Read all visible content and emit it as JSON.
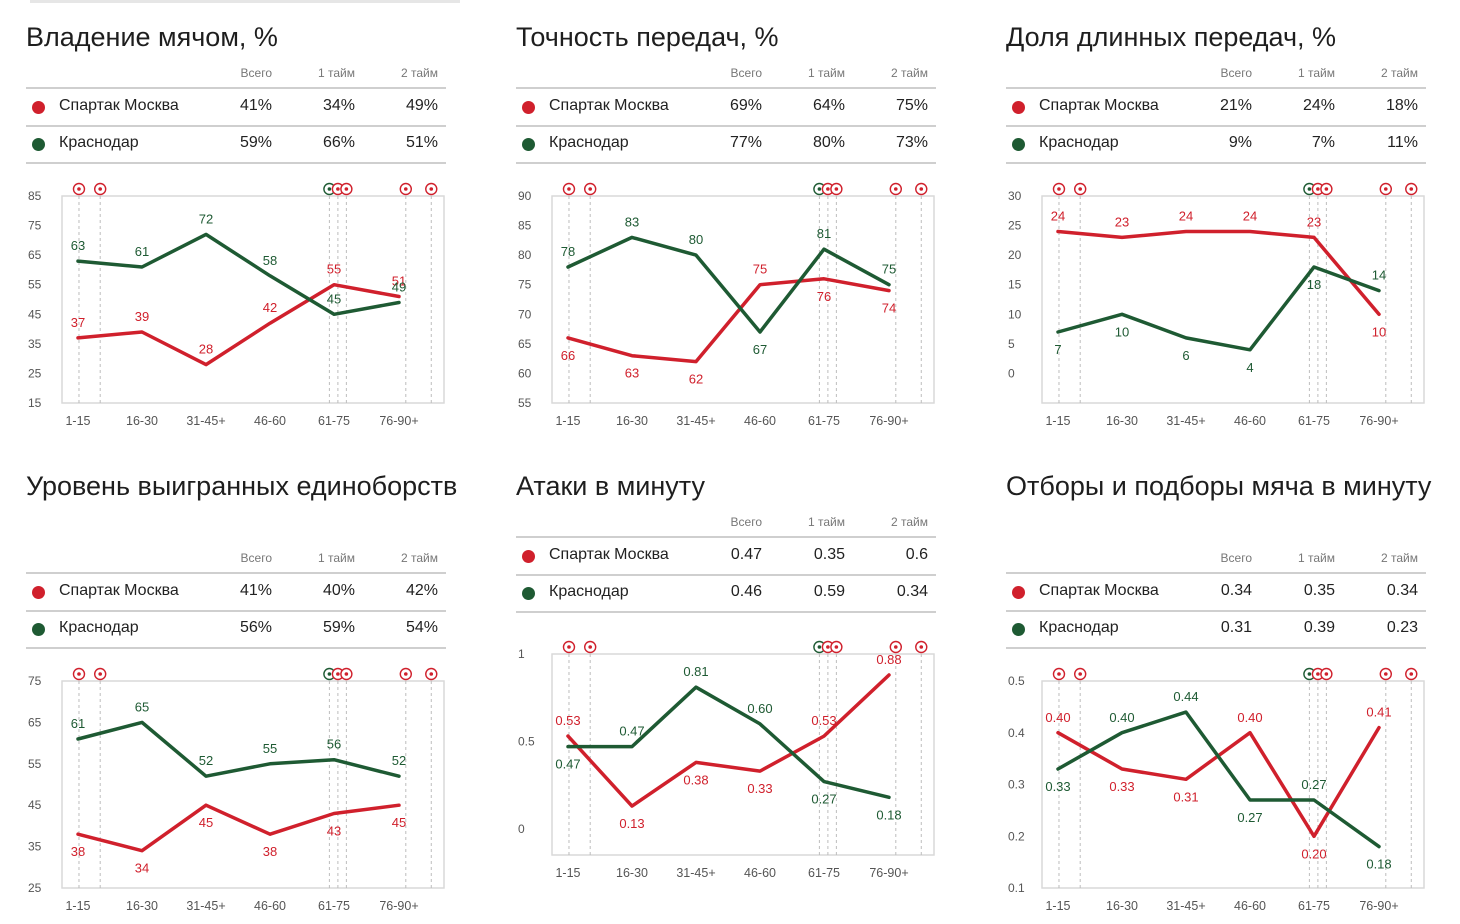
{
  "colors": {
    "spartak": "#d0202c",
    "krasnodar": "#1e5a33"
  },
  "header": {
    "total": "Всего",
    "half1": "1 тайм",
    "half2": "2 тайм"
  },
  "panels": [
    {
      "title": "Владение мячом, %",
      "rows": [
        {
          "team": "Спартак Москва",
          "color": "#d0202c",
          "total": "41%",
          "h1": "34%",
          "h2": "49%"
        },
        {
          "team": "Краснодар",
          "color": "#1e5a33",
          "total": "59%",
          "h1": "66%",
          "h2": "51%"
        }
      ]
    },
    {
      "title": "Точность передач, %",
      "rows": [
        {
          "team": "Спартак Москва",
          "color": "#d0202c",
          "total": "69%",
          "h1": "64%",
          "h2": "75%"
        },
        {
          "team": "Краснодар",
          "color": "#1e5a33",
          "total": "77%",
          "h1": "80%",
          "h2": "73%"
        }
      ]
    },
    {
      "title": "Доля длинных передач, %",
      "rows": [
        {
          "team": "Спартак Москва",
          "color": "#d0202c",
          "total": "21%",
          "h1": "24%",
          "h2": "18%"
        },
        {
          "team": "Краснодар",
          "color": "#1e5a33",
          "total": "9%",
          "h1": "7%",
          "h2": "11%"
        }
      ]
    },
    {
      "title": "Уровень выигранных единоборств",
      "rows": [
        {
          "team": "Спартак Москва",
          "color": "#d0202c",
          "total": "41%",
          "h1": "40%",
          "h2": "42%"
        },
        {
          "team": "Краснодар",
          "color": "#1e5a33",
          "total": "56%",
          "h1": "59%",
          "h2": "54%"
        }
      ]
    },
    {
      "title": "Атаки в минуту",
      "rows": [
        {
          "team": "Спартак Москва",
          "color": "#d0202c",
          "total": "0.47",
          "h1": "0.35",
          "h2": "0.6"
        },
        {
          "team": "Краснодар",
          "color": "#1e5a33",
          "total": "0.46",
          "h1": "0.59",
          "h2": "0.34"
        }
      ]
    },
    {
      "title": "Отборы и подборы мяча в минуту",
      "rows": [
        {
          "team": "Спартак Москва",
          "color": "#d0202c",
          "total": "0.34",
          "h1": "0.35",
          "h2": "0.34"
        },
        {
          "team": "Краснодар",
          "color": "#1e5a33",
          "total": "0.31",
          "h1": "0.39",
          "h2": "0.23"
        }
      ]
    }
  ],
  "chart_data": [
    {
      "type": "line",
      "title": "Владение мячом, %",
      "categories": [
        "1-15",
        "16-30",
        "31-45+",
        "46-60",
        "61-75",
        "76-90+"
      ],
      "yticks": [
        "85",
        "75",
        "65",
        "55",
        "45",
        "35",
        "25",
        "15"
      ],
      "ylim": [
        15,
        85
      ],
      "series": [
        {
          "name": "Спартак Москва",
          "color": "#d0202c",
          "values": [
            37,
            39,
            28,
            42,
            55,
            51
          ],
          "labels": [
            "37",
            "39",
            "28",
            "42",
            "55",
            "51"
          ]
        },
        {
          "name": "Краснодар",
          "color": "#1e5a33",
          "values": [
            63,
            61,
            72,
            58,
            45,
            49
          ],
          "labels": [
            "63",
            "61",
            "72",
            "58",
            "45",
            "49"
          ]
        }
      ],
      "goal_minutes": [
        4,
        9,
        63,
        65,
        67,
        81,
        87
      ]
    },
    {
      "type": "line",
      "title": "Точность передач, %",
      "categories": [
        "1-15",
        "16-30",
        "31-45+",
        "46-60",
        "61-75",
        "76-90+"
      ],
      "yticks": [
        "90",
        "85",
        "80",
        "75",
        "70",
        "65",
        "60",
        "55"
      ],
      "ylim": [
        55,
        90
      ],
      "series": [
        {
          "name": "Спартак Москва",
          "color": "#d0202c",
          "values": [
            66,
            63,
            62,
            75,
            76,
            74
          ],
          "labels": [
            "66",
            "63",
            "62",
            "75",
            "76",
            "74"
          ]
        },
        {
          "name": "Краснодар",
          "color": "#1e5a33",
          "values": [
            78,
            83,
            80,
            67,
            81,
            75
          ],
          "labels": [
            "78",
            "83",
            "80",
            "67",
            "81",
            "75"
          ]
        }
      ],
      "goal_minutes": [
        4,
        9,
        63,
        65,
        67,
        81,
        87
      ]
    },
    {
      "type": "line",
      "title": "Доля длинных передач, %",
      "categories": [
        "1-15",
        "16-30",
        "31-45+",
        "46-60",
        "61-75",
        "76-90+"
      ],
      "yticks": [
        "30",
        "25",
        "20",
        "15",
        "10",
        "5",
        "0"
      ],
      "ylim": [
        -5,
        30
      ],
      "series": [
        {
          "name": "Спартак Москва",
          "color": "#d0202c",
          "values": [
            24,
            23,
            24,
            24,
            23,
            10
          ],
          "labels": [
            "24",
            "23",
            "24",
            "24",
            "23",
            "10"
          ]
        },
        {
          "name": "Краснодар",
          "color": "#1e5a33",
          "values": [
            7,
            10,
            6,
            4,
            18,
            14
          ],
          "labels": [
            "7",
            "10",
            "6",
            "4",
            "18",
            "14"
          ]
        }
      ],
      "goal_minutes": [
        4,
        9,
        63,
        65,
        67,
        81,
        87
      ]
    },
    {
      "type": "line",
      "title": "Уровень выигранных единоборств",
      "categories": [
        "1-15",
        "16-30",
        "31-45+",
        "46-60",
        "61-75",
        "76-90+"
      ],
      "yticks": [
        "75",
        "65",
        "55",
        "45",
        "35",
        "25"
      ],
      "ylim": [
        25,
        75
      ],
      "series": [
        {
          "name": "Спартак Москва",
          "color": "#d0202c",
          "values": [
            38,
            34,
            45,
            38,
            43,
            45
          ],
          "labels": [
            "38",
            "34",
            "45",
            "38",
            "43",
            "45"
          ]
        },
        {
          "name": "Краснодар",
          "color": "#1e5a33",
          "values": [
            61,
            65,
            52,
            55,
            56,
            52
          ],
          "labels": [
            "61",
            "65",
            "52",
            "55",
            "56",
            "52"
          ]
        }
      ],
      "goal_minutes": [
        4,
        9,
        63,
        65,
        67,
        81,
        87
      ]
    },
    {
      "type": "line",
      "title": "Атаки в минуту",
      "categories": [
        "1-15",
        "16-30",
        "31-45+",
        "46-60",
        "61-75",
        "76-90+"
      ],
      "yticks": [
        "1",
        "0.5",
        "0"
      ],
      "ylim": [
        -0.15,
        1
      ],
      "series": [
        {
          "name": "Спартак Москва",
          "color": "#d0202c",
          "values": [
            0.53,
            0.13,
            0.38,
            0.33,
            0.53,
            0.88
          ],
          "labels": [
            "0.53",
            "0.13",
            "0.38",
            "0.33",
            "0.53",
            "0.88"
          ]
        },
        {
          "name": "Краснодар",
          "color": "#1e5a33",
          "values": [
            0.47,
            0.47,
            0.81,
            0.6,
            0.27,
            0.18
          ],
          "labels": [
            "0.47",
            "0.47",
            "0.81",
            "0.60",
            "0.27",
            "0.18"
          ]
        }
      ],
      "goal_minutes": [
        4,
        9,
        63,
        65,
        67,
        81,
        87
      ]
    },
    {
      "type": "line",
      "title": "Отборы и подборы мяча в минуту",
      "categories": [
        "1-15",
        "16-30",
        "31-45+",
        "46-60",
        "61-75",
        "76-90+"
      ],
      "yticks": [
        "0.5",
        "0.4",
        "0.3",
        "0.2",
        "0.1"
      ],
      "ylim": [
        0.1,
        0.5
      ],
      "series": [
        {
          "name": "Спартак Москва",
          "color": "#d0202c",
          "values": [
            0.4,
            0.33,
            0.31,
            0.4,
            0.2,
            0.41
          ],
          "labels": [
            "0.40",
            "0.33",
            "0.31",
            "0.40",
            "0.20",
            "0.41"
          ]
        },
        {
          "name": "Краснодар",
          "color": "#1e5a33",
          "values": [
            0.33,
            0.4,
            0.44,
            0.27,
            0.27,
            0.18
          ],
          "labels": [
            "0.33",
            "0.40",
            "0.44",
            "0.27",
            "0.27",
            "0.18"
          ]
        }
      ],
      "goal_minutes": [
        4,
        9,
        63,
        65,
        67,
        81,
        87
      ]
    }
  ]
}
